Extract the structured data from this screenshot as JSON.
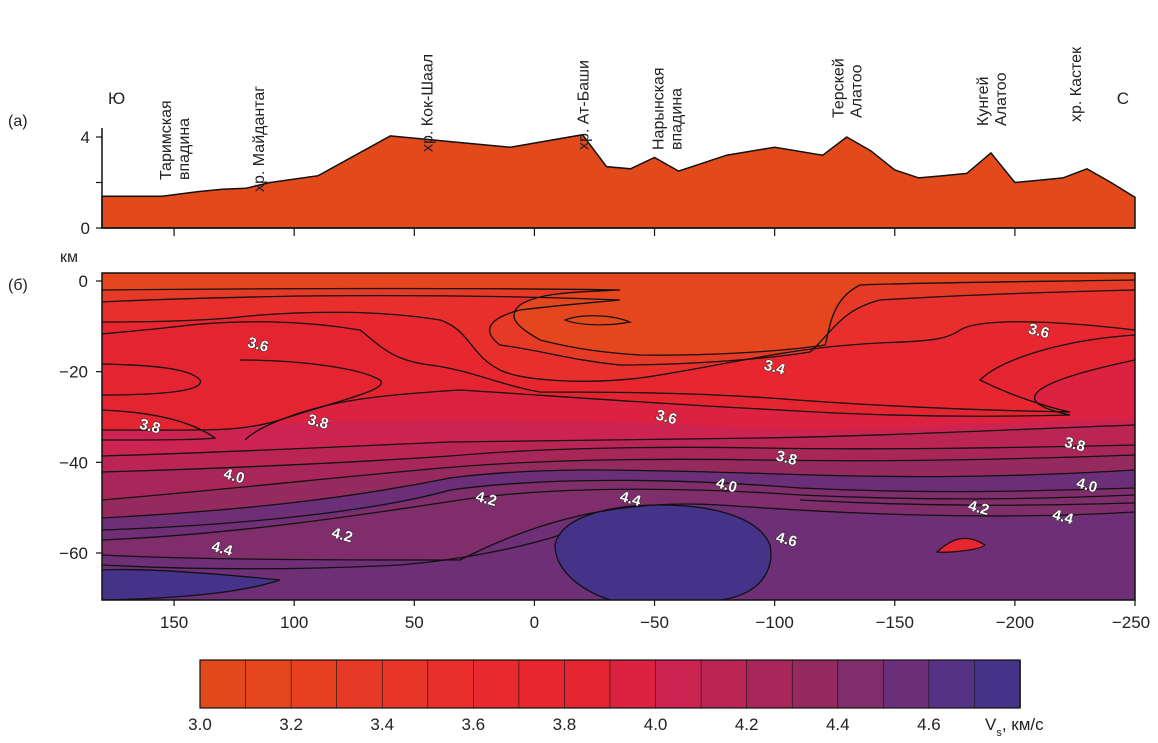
{
  "colors": {
    "topo_fill": "#e34a1b",
    "contour_line": "#111111",
    "palette": [
      "#e34a1b",
      "#e5461e",
      "#e63f22",
      "#e73a26",
      "#e8352a",
      "#e92f2c",
      "#e82a2e",
      "#e8262f",
      "#e52431",
      "#dc2240",
      "#cc2350",
      "#bb2556",
      "#a82758",
      "#952a5e",
      "#7f2d6b",
      "#6a2f78",
      "#553283",
      "#45338a"
    ]
  },
  "chart_data": [
    {
      "panel_label": "(а)",
      "type": "area",
      "xlim": [
        180,
        -250
      ],
      "ylim": [
        0,
        4
      ],
      "yticks": [
        "0",
        "4"
      ],
      "x": [
        180,
        155,
        140,
        130,
        120,
        110,
        90,
        60,
        30,
        10,
        -20,
        -30,
        -40,
        -50,
        -60,
        -80,
        -100,
        -120,
        -130,
        -140,
        -150,
        -160,
        -170,
        -180,
        -190,
        -200,
        -210,
        -220,
        -230,
        -240,
        -250
      ],
      "values": [
        1.4,
        1.4,
        1.6,
        1.7,
        1.75,
        2.0,
        2.3,
        4.05,
        3.75,
        3.55,
        4.1,
        2.7,
        2.6,
        3.1,
        2.5,
        3.2,
        3.55,
        3.2,
        4.0,
        3.4,
        2.55,
        2.2,
        2.3,
        2.4,
        3.3,
        2.0,
        2.1,
        2.2,
        2.6,
        2.0,
        1.35
      ],
      "annotations": [
        {
          "x": 180,
          "text": "Ю"
        },
        {
          "x": 150,
          "text": "Таримская впадина"
        },
        {
          "x": 115,
          "text": "хр. Майдантаг"
        },
        {
          "x": 45,
          "text": "хр. Кок-Шаал"
        },
        {
          "x": -20,
          "text": "хр. Ат-Баши"
        },
        {
          "x": -55,
          "text": "Нарынская впадина"
        },
        {
          "x": -130,
          "text": "Терскей Алатоо"
        },
        {
          "x": -190,
          "text": "Кунгей Алатоо"
        },
        {
          "x": -225,
          "text": "хр. Кастек"
        },
        {
          "x": -250,
          "text": "С"
        }
      ]
    },
    {
      "panel_label": "(б)",
      "type": "heatmap",
      "ylabel": "км",
      "xlim": [
        180,
        -250
      ],
      "ylim": [
        -70,
        0
      ],
      "xticks": [
        "150",
        "100",
        "50",
        "0",
        "−50",
        "−100",
        "−150",
        "−200",
        "−250"
      ],
      "yticks": [
        "0",
        "−20",
        "−40",
        "−60"
      ],
      "contour_labels": [
        {
          "text": "3.6",
          "x": 115,
          "y": -14
        },
        {
          "text": "3.6",
          "x": -210,
          "y": -11
        },
        {
          "text": "3.4",
          "x": -100,
          "y": -19
        },
        {
          "text": "3.8",
          "x": 160,
          "y": -32
        },
        {
          "text": "3.8",
          "x": 90,
          "y": -31
        },
        {
          "text": "3.6",
          "x": -55,
          "y": -30
        },
        {
          "text": "3.8",
          "x": -225,
          "y": -36
        },
        {
          "text": "3.8",
          "x": -105,
          "y": -39
        },
        {
          "text": "4.0",
          "x": 125,
          "y": -43
        },
        {
          "text": "4.0",
          "x": -80,
          "y": -45
        },
        {
          "text": "4.0",
          "x": -230,
          "y": -45
        },
        {
          "text": "4.2",
          "x": 20,
          "y": -48
        },
        {
          "text": "4.4",
          "x": -40,
          "y": -48
        },
        {
          "text": "4.2",
          "x": -185,
          "y": -50
        },
        {
          "text": "4.4",
          "x": -220,
          "y": -52
        },
        {
          "text": "4.2",
          "x": 80,
          "y": -56
        },
        {
          "text": "4.4",
          "x": 130,
          "y": -59
        },
        {
          "text": "4.6",
          "x": -105,
          "y": -57
        }
      ]
    },
    {
      "type": "colorbar",
      "ticks": [
        "3.0",
        "3.2",
        "3.4",
        "3.6",
        "3.8",
        "4.0",
        "4.2",
        "4.4",
        "4.6"
      ],
      "unit_label": "Vs, км/с"
    }
  ]
}
